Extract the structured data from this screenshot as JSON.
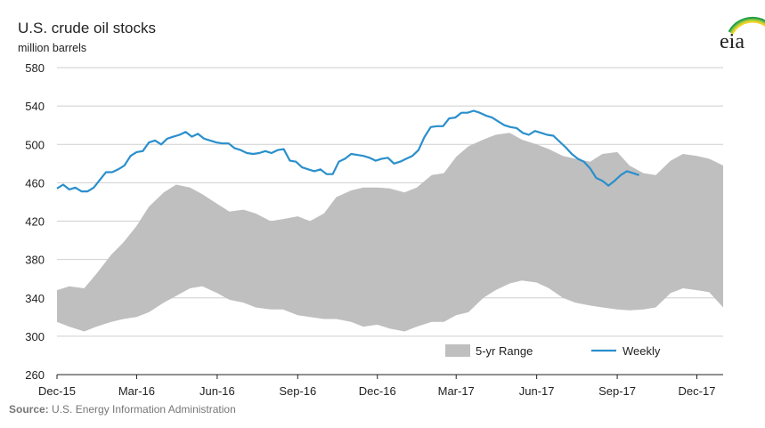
{
  "chart_data": {
    "type": "area",
    "title": "U.S. crude oil stocks",
    "ylabel": "million barrels",
    "xlabel": "",
    "ylim": [
      260,
      580
    ],
    "yticks": [
      260,
      300,
      340,
      380,
      420,
      460,
      500,
      540,
      580
    ],
    "x_domain": [
      "2015-12-01",
      "2017-12-31"
    ],
    "xticks": [
      {
        "label": "Dec-15",
        "date": "2015-12-01"
      },
      {
        "label": "Mar-16",
        "date": "2016-03-01"
      },
      {
        "label": "Jun-16",
        "date": "2016-06-01"
      },
      {
        "label": "Sep-16",
        "date": "2016-09-01"
      },
      {
        "label": "Dec-16",
        "date": "2016-12-01"
      },
      {
        "label": "Mar-17",
        "date": "2017-03-01"
      },
      {
        "label": "Jun-17",
        "date": "2017-06-01"
      },
      {
        "label": "Sep-17",
        "date": "2017-09-01"
      },
      {
        "label": "Dec-17",
        "date": "2017-12-01"
      }
    ],
    "grid": true,
    "legend_position": "bottom-right",
    "series": [
      {
        "name": "5-yr Range",
        "kind": "range",
        "color": "#bfbfbf",
        "x": [
          "2015-12-01",
          "2015-12-15",
          "2016-01-01",
          "2016-01-15",
          "2016-02-01",
          "2016-02-15",
          "2016-03-01",
          "2016-03-15",
          "2016-04-01",
          "2016-04-15",
          "2016-05-01",
          "2016-05-15",
          "2016-06-01",
          "2016-06-15",
          "2016-07-01",
          "2016-07-15",
          "2016-08-01",
          "2016-08-15",
          "2016-09-01",
          "2016-09-15",
          "2016-10-01",
          "2016-10-15",
          "2016-11-01",
          "2016-11-15",
          "2016-12-01",
          "2016-12-15",
          "2017-01-01",
          "2017-01-15",
          "2017-02-01",
          "2017-02-15",
          "2017-03-01",
          "2017-03-15",
          "2017-04-01",
          "2017-04-15",
          "2017-05-01",
          "2017-05-15",
          "2017-06-01",
          "2017-06-15",
          "2017-07-01",
          "2017-07-15",
          "2017-08-01",
          "2017-08-15",
          "2017-09-01",
          "2017-09-15",
          "2017-10-01",
          "2017-10-15",
          "2017-11-01",
          "2017-11-15",
          "2017-12-01",
          "2017-12-15",
          "2017-12-31"
        ],
        "high": [
          348,
          352,
          350,
          365,
          385,
          398,
          415,
          435,
          450,
          458,
          455,
          448,
          438,
          430,
          432,
          428,
          420,
          422,
          425,
          420,
          428,
          445,
          452,
          455,
          455,
          454,
          450,
          455,
          468,
          470,
          487,
          498,
          505,
          510,
          512,
          505,
          500,
          495,
          488,
          485,
          482,
          490,
          492,
          478,
          470,
          468,
          483,
          490,
          488,
          485,
          478
        ],
        "low": [
          315,
          310,
          305,
          310,
          315,
          318,
          320,
          325,
          335,
          342,
          350,
          352,
          345,
          338,
          335,
          330,
          328,
          328,
          322,
          320,
          318,
          318,
          315,
          310,
          312,
          308,
          305,
          310,
          315,
          315,
          322,
          325,
          340,
          348,
          355,
          358,
          356,
          350,
          340,
          335,
          332,
          330,
          328,
          327,
          328,
          330,
          345,
          350,
          348,
          346,
          330
        ]
      },
      {
        "name": "Weekly",
        "kind": "line",
        "color": "#2a8fcc",
        "x": [
          "2015-12-01",
          "2015-12-08",
          "2015-12-15",
          "2015-12-22",
          "2015-12-29",
          "2016-01-05",
          "2016-01-12",
          "2016-01-19",
          "2016-01-26",
          "2016-02-02",
          "2016-02-09",
          "2016-02-16",
          "2016-02-23",
          "2016-03-01",
          "2016-03-08",
          "2016-03-15",
          "2016-03-22",
          "2016-03-29",
          "2016-04-05",
          "2016-04-12",
          "2016-04-19",
          "2016-04-26",
          "2016-05-03",
          "2016-05-10",
          "2016-05-17",
          "2016-05-24",
          "2016-05-31",
          "2016-06-07",
          "2016-06-14",
          "2016-06-21",
          "2016-06-28",
          "2016-07-05",
          "2016-07-12",
          "2016-07-19",
          "2016-07-26",
          "2016-08-02",
          "2016-08-09",
          "2016-08-16",
          "2016-08-23",
          "2016-08-30",
          "2016-09-06",
          "2016-09-13",
          "2016-09-20",
          "2016-09-27",
          "2016-10-04",
          "2016-10-11",
          "2016-10-18",
          "2016-10-25",
          "2016-11-01",
          "2016-11-08",
          "2016-11-15",
          "2016-11-22",
          "2016-11-29",
          "2016-12-06",
          "2016-12-13",
          "2016-12-20",
          "2016-12-27",
          "2017-01-03",
          "2017-01-10",
          "2017-01-17",
          "2017-01-24",
          "2017-01-31",
          "2017-02-07",
          "2017-02-14",
          "2017-02-21",
          "2017-02-28",
          "2017-03-07",
          "2017-03-14",
          "2017-03-21",
          "2017-03-28",
          "2017-04-04",
          "2017-04-11",
          "2017-04-18",
          "2017-04-25",
          "2017-05-02",
          "2017-05-09",
          "2017-05-16",
          "2017-05-23",
          "2017-05-30",
          "2017-06-06",
          "2017-06-13",
          "2017-06-20",
          "2017-06-27",
          "2017-07-04",
          "2017-07-11",
          "2017-07-18",
          "2017-07-25",
          "2017-08-01",
          "2017-08-08",
          "2017-08-15",
          "2017-08-22",
          "2017-08-29",
          "2017-09-05",
          "2017-09-12",
          "2017-09-19",
          "2017-09-26"
        ],
        "y": [
          454,
          458,
          453,
          455,
          451,
          451,
          455,
          463,
          471,
          471,
          474,
          478,
          488,
          492,
          493,
          502,
          504,
          500,
          506,
          508,
          510,
          513,
          508,
          511,
          506,
          504,
          502,
          501,
          501,
          496,
          494,
          491,
          490,
          491,
          493,
          491,
          494,
          495,
          483,
          482,
          476,
          474,
          472,
          474,
          469,
          469,
          482,
          485,
          490,
          489,
          488,
          486,
          483,
          485,
          486,
          480,
          482,
          485,
          488,
          494,
          508,
          518,
          519,
          519,
          527,
          528,
          533,
          533,
          535,
          533,
          530,
          528,
          524,
          520,
          518,
          517,
          512,
          510,
          514,
          512,
          510,
          509,
          503,
          497,
          490,
          485,
          482,
          475,
          465,
          462,
          457,
          462,
          468,
          472,
          470,
          468
        ]
      }
    ]
  },
  "source": {
    "prefix": "Source:",
    "text": " U.S. Energy Information Administration"
  },
  "logo": {
    "text": "eia",
    "arc_colors": [
      "#1a9c3e",
      "#62b548",
      "#a8cf3b",
      "#f3d021"
    ]
  }
}
